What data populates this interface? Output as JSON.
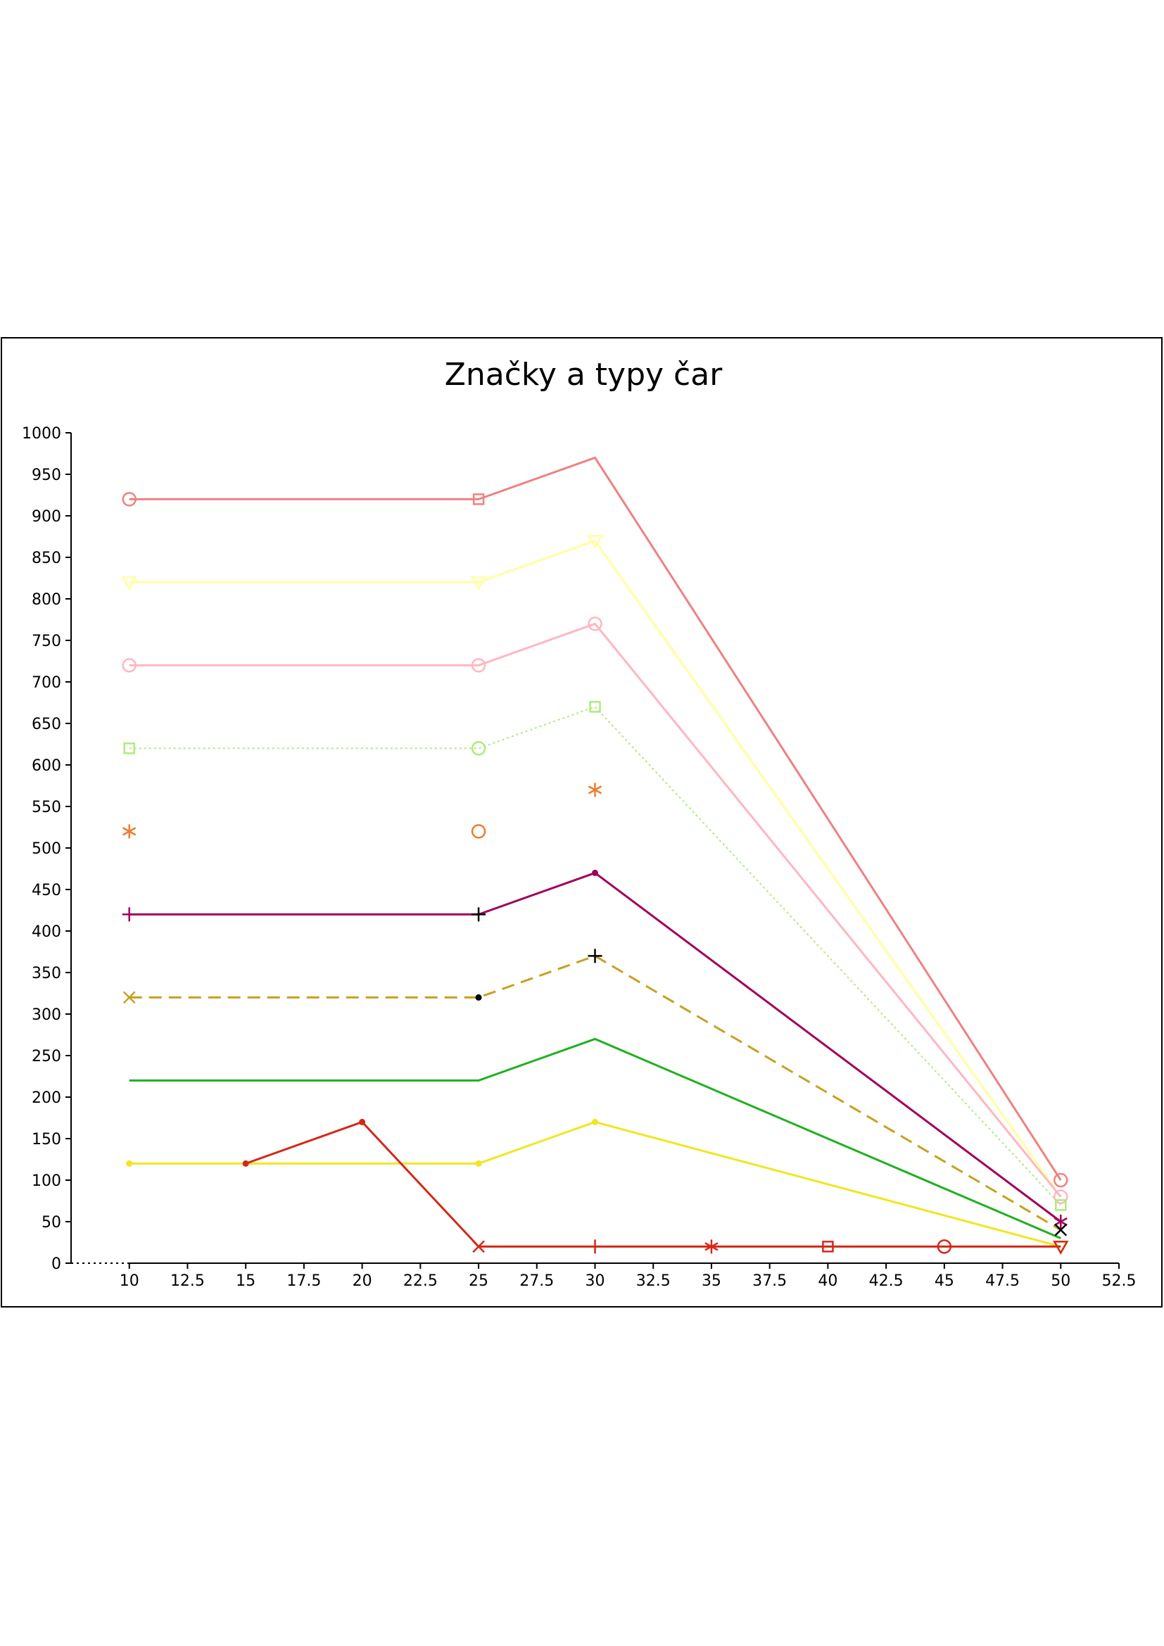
{
  "chart_data": {
    "type": "line",
    "title": "Značky a typy čar",
    "xlabel": "",
    "ylabel": "",
    "xlim": [
      7.5,
      52.5
    ],
    "ylim": [
      0,
      1000
    ],
    "x_ticks": [
      10,
      12.5,
      15,
      17.5,
      20,
      22.5,
      25,
      27.5,
      30,
      32.5,
      35,
      37.5,
      40,
      42.5,
      45,
      47.5,
      50,
      52.5
    ],
    "x_tick_labels": [
      "10",
      "12.5",
      "15",
      "17.5",
      "20",
      "22.5",
      "25",
      "27.5",
      "30",
      "32.5",
      "35",
      "37.5",
      "40",
      "42.5",
      "45",
      "47.5",
      "50",
      "52.5"
    ],
    "y_ticks": [
      0,
      50,
      100,
      150,
      200,
      250,
      300,
      350,
      400,
      450,
      500,
      550,
      600,
      650,
      700,
      750,
      800,
      850,
      900,
      950,
      1000
    ],
    "y_tick_labels": [
      "0",
      "50",
      "100",
      "150",
      "200",
      "250",
      "300",
      "350",
      "400",
      "450",
      "500",
      "550",
      "600",
      "650",
      "700",
      "750",
      "800",
      "850",
      "900",
      "950",
      "1000"
    ],
    "grid": false,
    "legend": "none",
    "series": [
      {
        "color": "#f08080",
        "line": "solid",
        "x": [
          10,
          25,
          30,
          50
        ],
        "y": [
          920,
          920,
          970,
          100
        ],
        "markers": [
          "circle",
          "square",
          "none",
          "circle"
        ]
      },
      {
        "color": "#ffffa0",
        "line": "solid",
        "x": [
          10,
          25,
          30,
          50
        ],
        "y": [
          820,
          820,
          870,
          80
        ],
        "markers": [
          "triangle-down",
          "triangle-down",
          "triangle-down",
          "none"
        ]
      },
      {
        "color": "#ffb6c1",
        "line": "solid",
        "x": [
          10,
          25,
          30,
          50
        ],
        "y": [
          720,
          720,
          770,
          80
        ],
        "markers": [
          "circle",
          "circle",
          "circle",
          "circle"
        ]
      },
      {
        "color": "#adeb7a",
        "line": "dotted",
        "x": [
          10,
          25,
          30,
          50
        ],
        "y": [
          620,
          620,
          670,
          70
        ],
        "markers": [
          "square",
          "circle",
          "square",
          "square"
        ]
      },
      {
        "color": "#ee7a2e",
        "line": "none",
        "x": [
          10,
          25,
          30
        ],
        "y": [
          520,
          520,
          570
        ],
        "markers": [
          "star",
          "circle",
          "star"
        ]
      },
      {
        "color": "#a0005a",
        "line": "solid",
        "x": [
          10,
          25,
          30,
          50
        ],
        "y": [
          420,
          420,
          470,
          50
        ],
        "markers": [
          "plus",
          "plus-black",
          "dot",
          "star"
        ]
      },
      {
        "color": "#c8a020",
        "line": "dashed",
        "x": [
          10,
          25,
          30,
          50
        ],
        "y": [
          320,
          320,
          370,
          40
        ],
        "markers": [
          "x",
          "dot-black",
          "plus-black",
          "x-black"
        ]
      },
      {
        "color": "#20b020",
        "line": "solid",
        "x": [
          10,
          25,
          30,
          50
        ],
        "y": [
          220,
          220,
          270,
          30
        ],
        "markers": [
          "none",
          "none",
          "none",
          "none"
        ]
      },
      {
        "color": "#f0e620",
        "line": "solid",
        "x": [
          10,
          25,
          30,
          50
        ],
        "y": [
          120,
          120,
          170,
          20
        ],
        "markers": [
          "dot",
          "dot",
          "dot",
          "triangle-down"
        ]
      },
      {
        "color": "#d42818",
        "line": "solid",
        "x": [
          15,
          20,
          25,
          30,
          35,
          40,
          45,
          50
        ],
        "y": [
          120,
          170,
          20,
          20,
          20,
          20,
          20,
          20
        ],
        "markers": [
          "dot",
          "dot",
          "x",
          "plus",
          "star",
          "square",
          "circle",
          "triangle-down"
        ]
      }
    ]
  }
}
